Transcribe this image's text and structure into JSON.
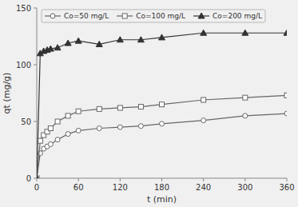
{
  "chart_data": {
    "type": "line",
    "x_label": "t (min)",
    "y_label": "qt (mg/g)",
    "x": [
      0,
      5,
      10,
      15,
      20,
      30,
      45,
      60,
      90,
      120,
      150,
      180,
      240,
      300,
      360
    ],
    "series": [
      {
        "name": "Co=50 mg/L",
        "color": "#666666",
        "marker": "circle-open",
        "values": [
          0,
          22,
          26,
          28,
          30,
          34,
          39,
          42,
          44,
          45,
          46,
          48,
          51,
          55,
          57
        ]
      },
      {
        "name": "Co=100 mg/L",
        "color": "#666666",
        "marker": "square-open",
        "values": [
          0,
          33,
          38,
          41,
          44,
          50,
          55,
          59,
          61,
          62,
          63,
          65,
          69,
          71,
          73
        ]
      },
      {
        "name": "Co=200 mg/L",
        "color": "#333333",
        "marker": "triangle-filled",
        "values": [
          0,
          110,
          112,
          113,
          114,
          115,
          119,
          121,
          118,
          122,
          122,
          124,
          128,
          128,
          128
        ]
      }
    ],
    "xlim": [
      0,
      360
    ],
    "ylim": [
      0,
      150
    ],
    "xticks": [
      0,
      60,
      120,
      180,
      240,
      300,
      360
    ],
    "yticks": [
      0,
      50,
      100,
      150
    ],
    "legend": "upper left",
    "grid": false
  }
}
